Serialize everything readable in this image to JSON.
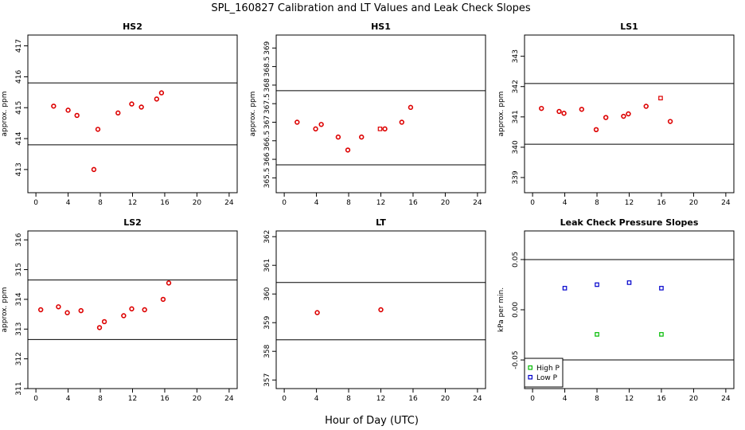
{
  "figure": {
    "title": "SPL_160827  Calibration and LT Values and Leak Check Slopes",
    "xlabel": "Hour of Day (UTC)"
  },
  "chart_data": [
    {
      "type": "scatter",
      "title": "HS2",
      "ylabel": "approx. ppm",
      "xlim": [
        -1,
        25
      ],
      "ylim": [
        412.25,
        417.35
      ],
      "xticks": [
        "0",
        "4",
        "8",
        "12",
        "16",
        "20",
        "24"
      ],
      "yticks": [
        "413",
        "414",
        "415",
        "416",
        "417"
      ],
      "hlines": [
        413.8,
        415.8
      ],
      "series": [
        {
          "marker": "circle",
          "color": "#dd0000",
          "x": [
            2.2,
            4.0,
            5.1,
            7.2,
            7.7,
            10.2,
            11.9,
            13.1,
            15.0,
            15.6
          ],
          "y": [
            415.05,
            414.92,
            414.75,
            413.0,
            414.3,
            414.83,
            415.12,
            415.02,
            415.28,
            415.48
          ]
        }
      ]
    },
    {
      "type": "scatter",
      "title": "HS1",
      "ylabel": "approx. ppm",
      "xlim": [
        -1,
        25
      ],
      "ylim": [
        365.1,
        369.35
      ],
      "xticks": [
        "0",
        "4",
        "8",
        "12",
        "16",
        "20",
        "24"
      ],
      "yticks": [
        "365.5",
        "366",
        "366.5",
        "367",
        "367.5",
        "368",
        "368.5",
        "369"
      ],
      "hlines": [
        365.85,
        367.85
      ],
      "series": [
        {
          "marker": "circle",
          "color": "#dd0000",
          "x": [
            1.6,
            3.9,
            4.6,
            6.7,
            7.9,
            9.6,
            12.5,
            14.6,
            15.7
          ],
          "y": [
            367.0,
            366.82,
            366.94,
            366.6,
            366.25,
            366.6,
            366.82,
            367.0,
            367.4
          ]
        },
        {
          "marker": "square",
          "color": "#dd0000",
          "x": [
            11.9
          ],
          "y": [
            366.82
          ]
        }
      ]
    },
    {
      "type": "scatter",
      "title": "LS1",
      "ylabel": "approx. ppm",
      "xlim": [
        -1,
        25
      ],
      "ylim": [
        338.5,
        343.7
      ],
      "xticks": [
        "0",
        "4",
        "8",
        "12",
        "16",
        "20",
        "24"
      ],
      "yticks": [
        "339",
        "340",
        "341",
        "342",
        "343"
      ],
      "hlines": [
        340.1,
        342.1
      ],
      "series": [
        {
          "marker": "circle",
          "color": "#dd0000",
          "x": [
            1.1,
            3.3,
            3.9,
            6.1,
            7.9,
            9.1,
            11.3,
            11.9,
            14.1,
            17.1
          ],
          "y": [
            341.28,
            341.18,
            341.12,
            341.25,
            340.58,
            340.98,
            341.02,
            341.1,
            341.35,
            340.85
          ]
        },
        {
          "marker": "square",
          "color": "#dd0000",
          "x": [
            15.9
          ],
          "y": [
            341.62
          ]
        }
      ]
    },
    {
      "type": "scatter",
      "title": "LS2",
      "ylabel": "approx. ppm",
      "xlim": [
        -1,
        25
      ],
      "ylim": [
        311.0,
        316.3
      ],
      "xticks": [
        "0",
        "4",
        "8",
        "12",
        "16",
        "20",
        "24"
      ],
      "yticks": [
        "311",
        "312",
        "313",
        "314",
        "315",
        "316"
      ],
      "hlines": [
        312.65,
        314.65
      ],
      "series": [
        {
          "marker": "circle",
          "color": "#dd0000",
          "x": [
            0.6,
            2.8,
            3.9,
            5.6,
            7.9,
            8.5,
            10.9,
            11.9,
            13.5,
            15.8,
            16.5
          ],
          "y": [
            313.65,
            313.75,
            313.55,
            313.62,
            313.05,
            313.25,
            313.45,
            313.68,
            313.65,
            314.0,
            314.55
          ]
        }
      ]
    },
    {
      "type": "scatter",
      "title": "LT",
      "ylabel": "",
      "xlim": [
        -1,
        25
      ],
      "ylim": [
        356.7,
        362.2
      ],
      "xticks": [
        "0",
        "4",
        "8",
        "12",
        "16",
        "20",
        "24"
      ],
      "yticks": [
        "357",
        "358",
        "359",
        "360",
        "361",
        "362"
      ],
      "hlines": [
        358.4,
        360.4
      ],
      "series": [
        {
          "marker": "circle",
          "color": "#dd0000",
          "x": [
            4.1,
            12.0
          ],
          "y": [
            359.35,
            359.45
          ]
        }
      ]
    },
    {
      "type": "scatter",
      "title": "Leak Check Pressure Slopes",
      "ylabel": "kPa per min.",
      "xlim": [
        -1,
        25
      ],
      "ylim": [
        -0.0785,
        0.0785
      ],
      "xticks": [
        "0",
        "4",
        "8",
        "12",
        "16",
        "20",
        "24"
      ],
      "yticks": [
        "-0.05",
        "0.00",
        "0.05"
      ],
      "hlines": [
        -0.05,
        0.05
      ],
      "legend": {
        "position": "bottom-left",
        "entries": [
          {
            "label": "High P",
            "color": "#00bb00"
          },
          {
            "label": "Low P",
            "color": "#0000cc"
          }
        ]
      },
      "series": [
        {
          "name": "High P",
          "marker": "square",
          "color": "#00bb00",
          "x": [
            8,
            16
          ],
          "y": [
            -0.0245,
            -0.0245
          ]
        },
        {
          "name": "Low P",
          "marker": "square",
          "color": "#0000cc",
          "x": [
            4,
            8,
            12,
            16
          ],
          "y": [
            0.0215,
            0.025,
            0.027,
            0.0215
          ]
        }
      ]
    }
  ]
}
